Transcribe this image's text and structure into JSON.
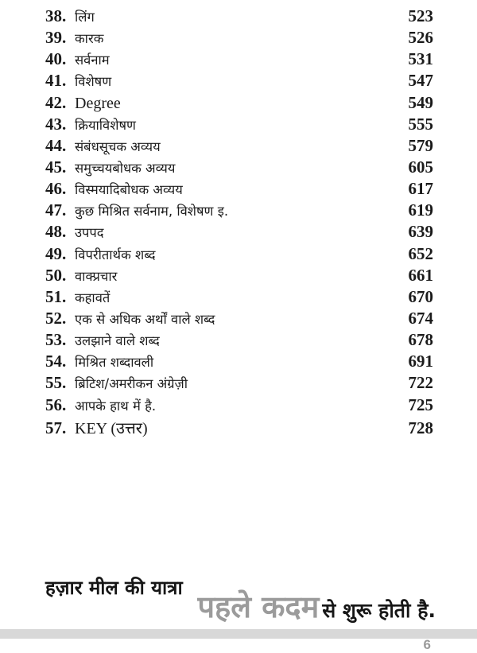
{
  "page": {
    "number": "6"
  },
  "colors": {
    "text": "#1b1b1b",
    "divider_bar": "#d8d8d8",
    "page_number_gray": "#9a9a9a",
    "highlight_gray": "#9b9b9b"
  },
  "toc": {
    "entries": [
      {
        "no": "38.",
        "title": "लिंग",
        "page": "523"
      },
      {
        "no": "39.",
        "title": "कारक",
        "page": "526"
      },
      {
        "no": "40.",
        "title": "सर्वनाम",
        "page": "531"
      },
      {
        "no": "41.",
        "title": "विशेषण",
        "page": "547"
      },
      {
        "no": "42.",
        "title": "Degree",
        "page": "549"
      },
      {
        "no": "43.",
        "title": "क्रियाविशेषण",
        "page": "555"
      },
      {
        "no": "44.",
        "title": "संबंधसूचक अव्यय",
        "page": "579"
      },
      {
        "no": "45.",
        "title": "समुच्चयबोधक अव्यय",
        "page": "605"
      },
      {
        "no": "46.",
        "title": "विस्मयादिबोधक अव्यय",
        "page": "617"
      },
      {
        "no": "47.",
        "title": "कुछ मिश्रित सर्वनाम, विशेषण इ.",
        "page": "619"
      },
      {
        "no": "48.",
        "title": "उपपद",
        "page": "639"
      },
      {
        "no": "49.",
        "title": "विपरीतार्थक शब्द",
        "page": "652"
      },
      {
        "no": "50.",
        "title": "वाक्प्रचार",
        "page": "661"
      },
      {
        "no": "51.",
        "title": "कहावतें",
        "page": "670"
      },
      {
        "no": "52.",
        "title": "एक से अधिक अर्थों वाले शब्द",
        "page": "674"
      },
      {
        "no": "53.",
        "title": "उलझाने वाले शब्द",
        "page": "678"
      },
      {
        "no": "54.",
        "title": "मिश्रित शब्दावली",
        "page": "691"
      },
      {
        "no": "55.",
        "title": "ब्रिटिश/अमरीकन अंग्रेज़ी",
        "page": "722"
      },
      {
        "no": "56.",
        "title": "आपके हाथ में है.",
        "page": "725"
      },
      {
        "no": "57.",
        "title": "KEY (उत्तर)",
        "page": "728"
      }
    ]
  },
  "footer_quote": {
    "line1": "हज़ार मील की यात्रा",
    "highlight": "पहले कदम",
    "line2_rest": "से शुरू होती है."
  }
}
